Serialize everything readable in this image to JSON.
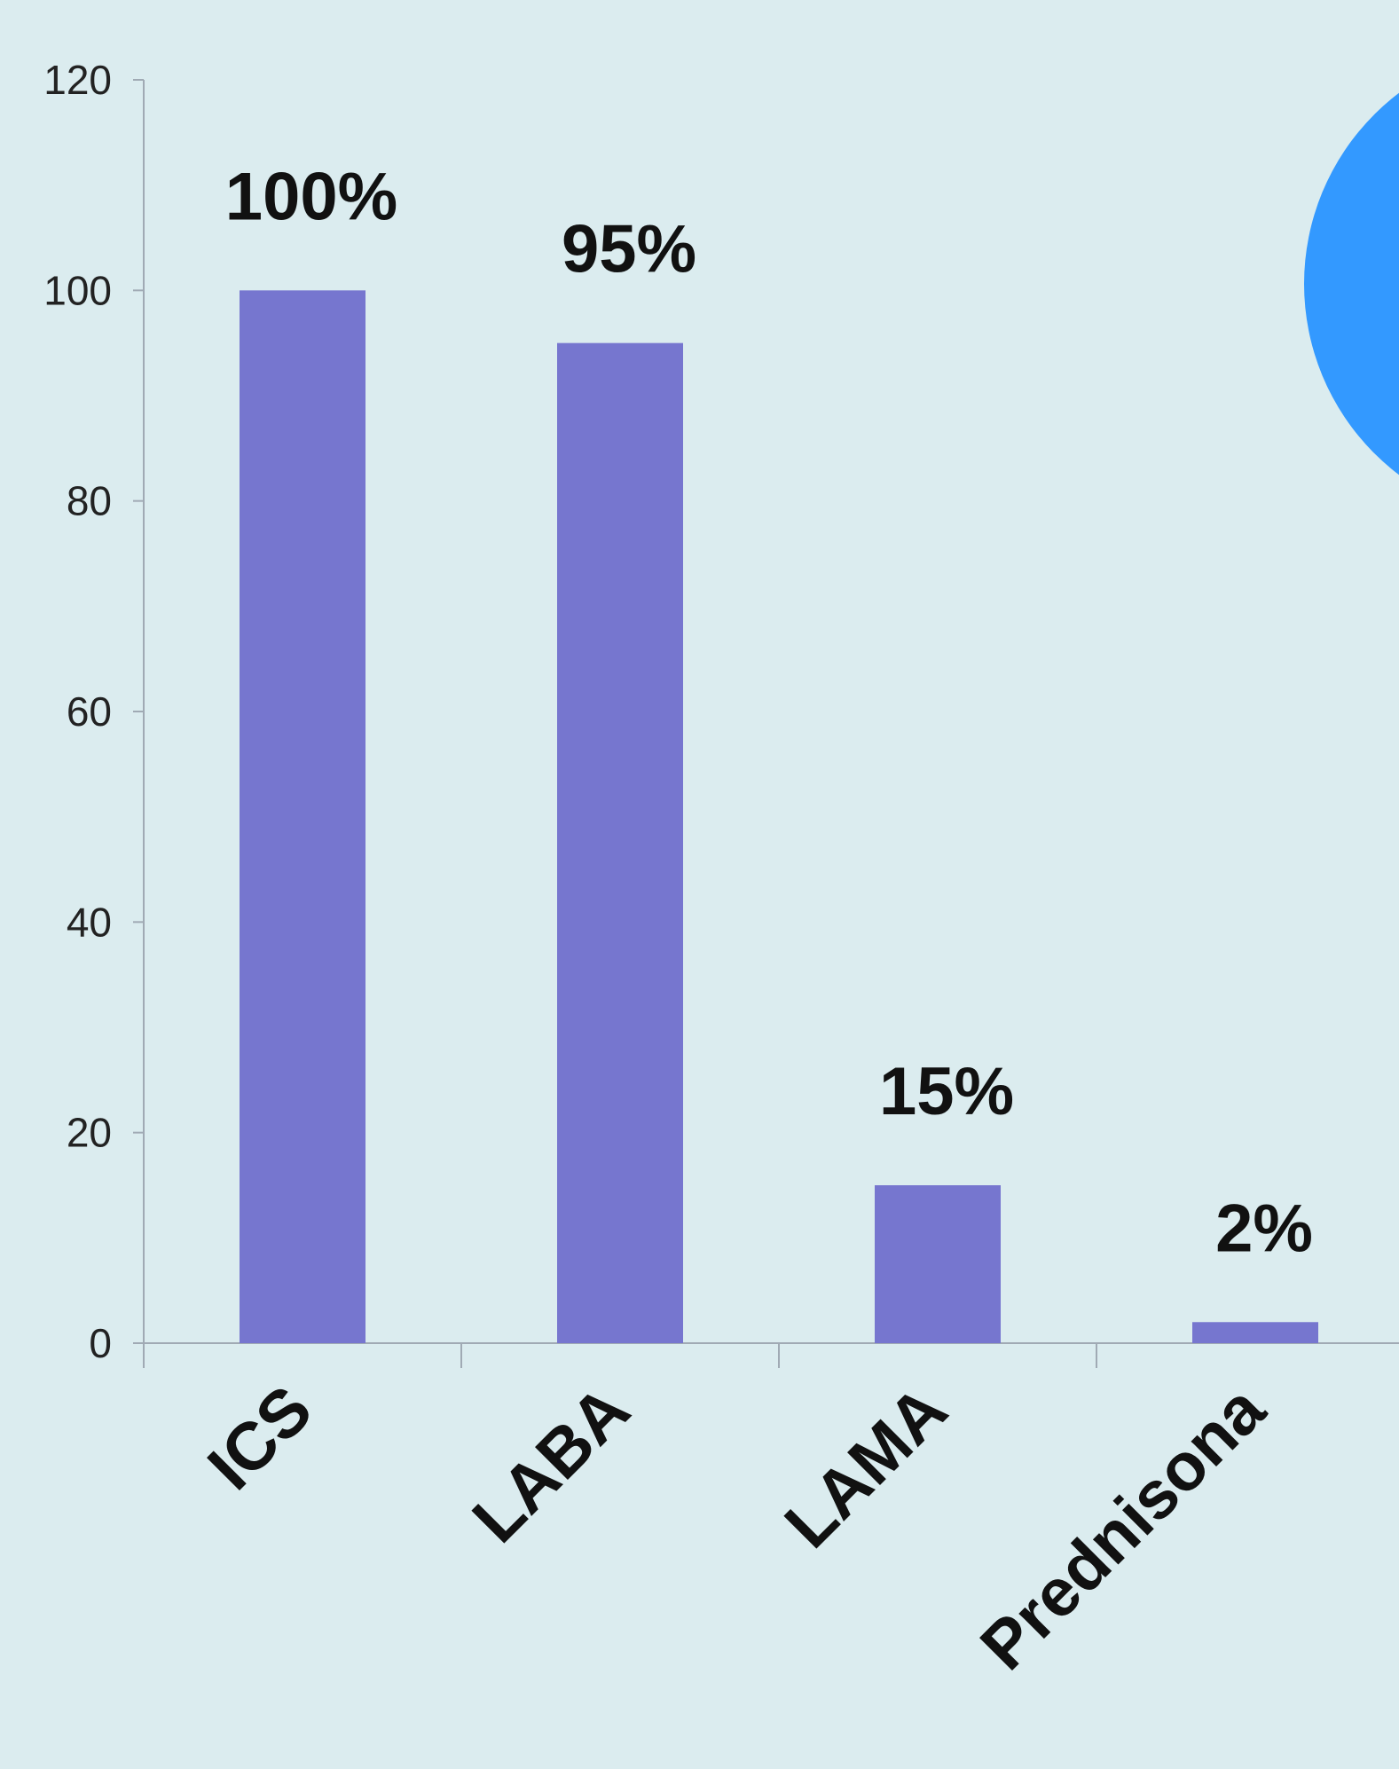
{
  "chart_data": {
    "type": "bar",
    "categories": [
      "ICS",
      "LABA",
      "LAMA",
      "Prednisona"
    ],
    "values": [
      100,
      95,
      15,
      2
    ],
    "data_labels": [
      "100%",
      "95%",
      "15%",
      "2%"
    ],
    "title": "",
    "xlabel": "",
    "ylabel": "",
    "ylim": [
      0,
      120
    ],
    "y_ticks": [
      "0",
      "20",
      "40",
      "60",
      "80",
      "100",
      "120"
    ],
    "grid": false,
    "bar_color": "#7676cf",
    "axis_color": "#a0aab4",
    "background_color": "#dbecef",
    "decoration_color": "#3399ff"
  }
}
